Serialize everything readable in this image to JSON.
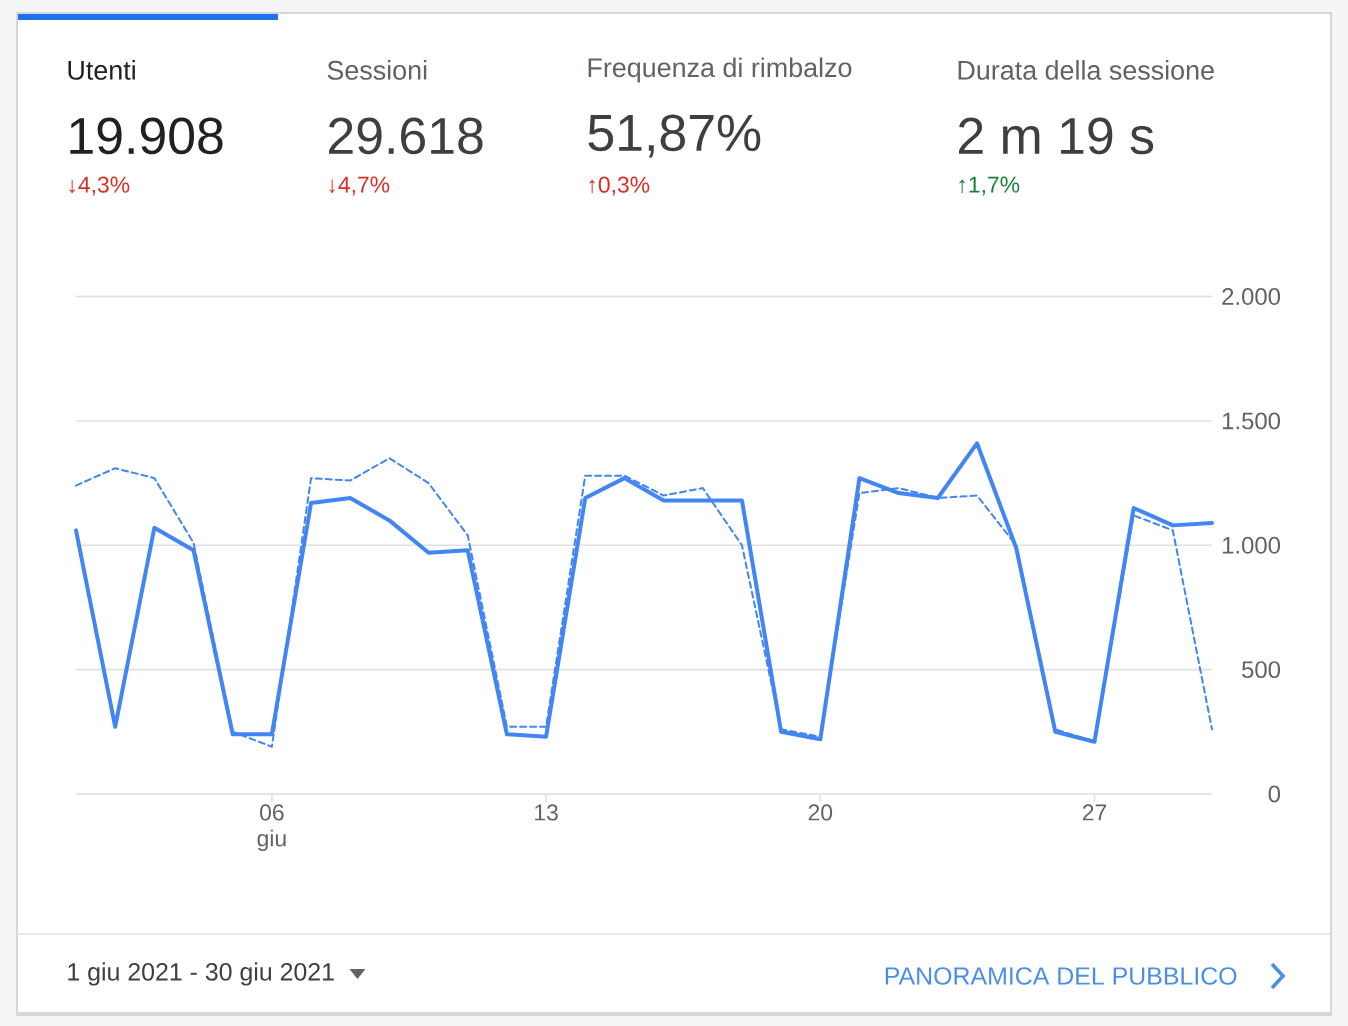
{
  "chart_data": {
    "type": "line",
    "annotations": [
      "Utenti",
      "19.908",
      "↓4,3%",
      "Sessioni",
      "29.618",
      "↓4,7%",
      "Frequenza di rimbalzo",
      "51,87%",
      "↑0,3%",
      "Durata della sessione",
      "2 m 19 s",
      "↑1,7%",
      "1 giu 2021 - 30 giu 2021",
      "PANORAMICA DEL PUBBLICO"
    ],
    "x": [
      "2021-06-01",
      "2021-06-02",
      "2021-06-03",
      "2021-06-04",
      "2021-06-05",
      "2021-06-06",
      "2021-06-07",
      "2021-06-08",
      "2021-06-09",
      "2021-06-10",
      "2021-06-11",
      "2021-06-12",
      "2021-06-13",
      "2021-06-14",
      "2021-06-15",
      "2021-06-16",
      "2021-06-17",
      "2021-06-18",
      "2021-06-19",
      "2021-06-20",
      "2021-06-21",
      "2021-06-22",
      "2021-06-23",
      "2021-06-24",
      "2021-06-25",
      "2021-06-26",
      "2021-06-27",
      "2021-06-28",
      "2021-06-29",
      "2021-06-30"
    ],
    "series": [
      {
        "color": "#4285f4",
        "line_style": "solid",
        "values": [
          1060,
          270,
          1070,
          980,
          240,
          240,
          1170,
          1190,
          1100,
          970,
          980,
          240,
          230,
          1190,
          1270,
          1180,
          1180,
          1180,
          250,
          220,
          1270,
          1210,
          1190,
          1410,
          990,
          250,
          210,
          1150,
          1080,
          1090
        ]
      },
      {
        "color": "#4285f4",
        "line_style": "dashed",
        "values": [
          1240,
          1310,
          1270,
          1010,
          250,
          190,
          1270,
          1260,
          1350,
          1250,
          1040,
          270,
          270,
          1280,
          1280,
          1200,
          1230,
          1000,
          260,
          230,
          1210,
          1230,
          1190,
          1200,
          1000,
          260,
          210,
          1120,
          1060,
          260
        ]
      }
    ],
    "xlim": [
      "2021-06-01",
      "2021-06-30"
    ],
    "xticks": [
      {
        "value": "2021-06-06",
        "label": "06 giu"
      },
      {
        "value": "2021-06-13",
        "label": "13"
      },
      {
        "value": "2021-06-20",
        "label": "20"
      },
      {
        "value": "2021-06-27",
        "label": "27"
      }
    ],
    "ylim": [
      0,
      2000
    ],
    "yticks": [
      0,
      500,
      {
        "value": 1000,
        "label": "1.000"
      },
      {
        "value": 1500,
        "label": "1.500"
      },
      {
        "value": 2000,
        "label": "2.000"
      }
    ],
    "grid": "y",
    "marker": "none"
  }
}
